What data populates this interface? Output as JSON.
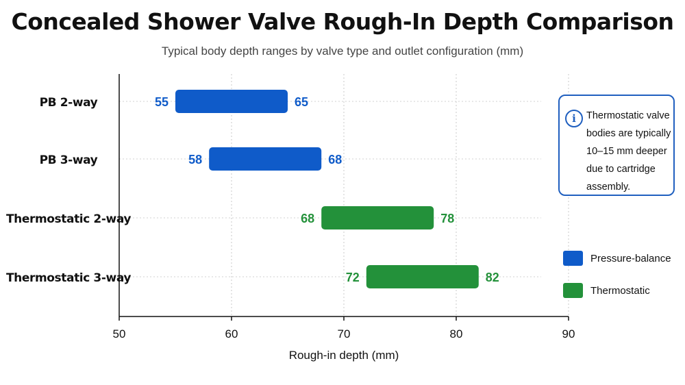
{
  "title": "Concealed Shower Valve Rough-In Depth Comparison",
  "subtitle": "Typical body depth ranges by valve type and outlet configuration (mm)",
  "info_note": {
    "icon": "info-icon",
    "text": "Thermostatic valve bodies are typically 10–15 mm deeper due to cartridge assembly."
  },
  "legend": [
    {
      "label": "Pressure-balance",
      "color": "#0f5bc9"
    },
    {
      "label": "Thermostatic",
      "color": "#23913a"
    }
  ],
  "chart_data": {
    "type": "bar",
    "orientation": "horizontal-range",
    "title": "Concealed Shower Valve Rough-In Depth Comparison",
    "subtitle": "Typical body depth ranges by valve type and outlet configuration (mm)",
    "xlabel": "Rough-in depth (mm)",
    "ylabel": "",
    "xlim": [
      50,
      90
    ],
    "xticks": [
      50,
      60,
      70,
      80,
      90
    ],
    "grid": true,
    "legend_position": "right",
    "categories": [
      "PB 2-way",
      "PB 3-way",
      "Thermostatic 2-way",
      "Thermostatic 3-way"
    ],
    "ranges": [
      {
        "category": "PB 2-way",
        "min": 55,
        "max": 65,
        "group": "Pressure-balance"
      },
      {
        "category": "PB 3-way",
        "min": 58,
        "max": 68,
        "group": "Pressure-balance"
      },
      {
        "category": "Thermostatic 2-way",
        "min": 68,
        "max": 78,
        "group": "Thermostatic"
      },
      {
        "category": "Thermostatic 3-way",
        "min": 72,
        "max": 82,
        "group": "Thermostatic"
      }
    ],
    "colors": {
      "Pressure-balance": "#0f5bc9",
      "Thermostatic": "#23913a"
    }
  }
}
